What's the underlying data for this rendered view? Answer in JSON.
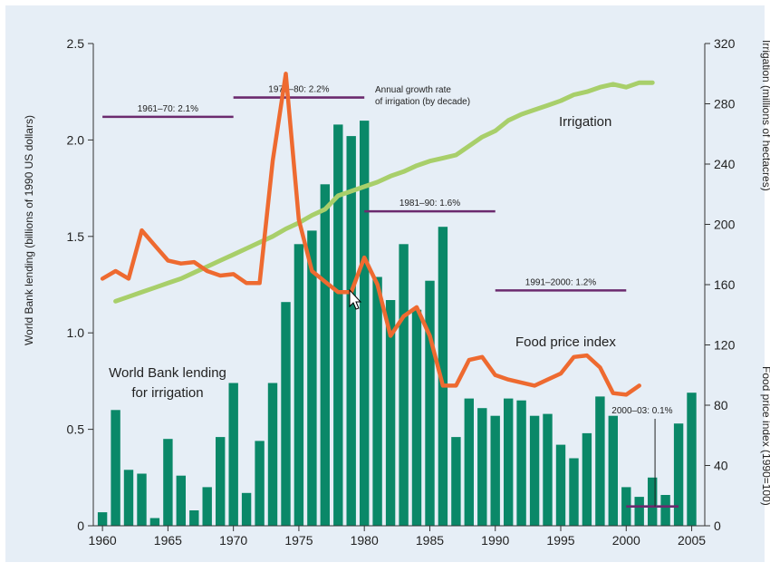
{
  "chart_data": {
    "type": "bar",
    "background": "#e6eef6",
    "colors": {
      "bars": "#0a8868",
      "irrigation": "#a8cf6a",
      "food": "#ee6a30",
      "growth": "#6b2a6e",
      "axis": "#333333"
    },
    "x": {
      "min": 1959.3,
      "max": 2006,
      "ticks": [
        1960,
        1965,
        1970,
        1975,
        1980,
        1985,
        1990,
        1995,
        2000,
        2005
      ],
      "tick_labels": [
        "1960",
        "1965",
        "1970",
        "1975",
        "1980",
        "1985",
        "1990",
        "1995",
        "2000",
        "2005"
      ]
    },
    "y_left": {
      "label": "World Bank lending (billions of 1990 US dollars)",
      "range": [
        0,
        2.5
      ],
      "ticks": [
        0,
        0.5,
        1.0,
        1.5,
        2.0,
        2.5
      ],
      "tick_labels": [
        "0",
        "0.5",
        "1.0",
        "1.5",
        "2.0",
        "2.5"
      ]
    },
    "y_right": {
      "label_top": "Irrigation (millions of hectacres)",
      "label_bottom": "Food price index (1990=100)",
      "range": [
        0,
        320
      ],
      "ticks": [
        0,
        40,
        80,
        120,
        160,
        200,
        240,
        280,
        320
      ],
      "tick_labels": [
        "0",
        "40",
        "80",
        "120",
        "160",
        "200",
        "240",
        "280",
        "320"
      ]
    },
    "lending": {
      "name": "World Bank lending for irrigation",
      "years": [
        1960,
        1961,
        1962,
        1963,
        1964,
        1965,
        1966,
        1967,
        1968,
        1969,
        1970,
        1971,
        1972,
        1973,
        1974,
        1975,
        1976,
        1977,
        1978,
        1979,
        1980,
        1981,
        1982,
        1983,
        1984,
        1985,
        1986,
        1987,
        1988,
        1989,
        1990,
        1991,
        1992,
        1993,
        1994,
        1995,
        1996,
        1997,
        1998,
        1999,
        2000,
        2001,
        2002,
        2003,
        2004,
        2005
      ],
      "values": [
        0.07,
        0.6,
        0.29,
        0.27,
        0.04,
        0.45,
        0.26,
        0.08,
        0.2,
        0.46,
        0.74,
        0.17,
        0.44,
        0.74,
        1.16,
        1.46,
        1.53,
        1.77,
        2.08,
        2.02,
        2.1,
        1.29,
        1.17,
        1.46,
        1.12,
        1.27,
        1.55,
        0.46,
        0.66,
        0.61,
        0.57,
        0.66,
        0.65,
        0.57,
        0.58,
        0.42,
        0.35,
        0.48,
        0.67,
        0.57,
        0.2,
        0.15,
        0.25,
        0.16,
        0.53,
        0.69
      ]
    },
    "irrigation": {
      "name": "Irrigation",
      "years": [
        1961,
        1962,
        1963,
        1964,
        1965,
        1966,
        1967,
        1968,
        1969,
        1970,
        1971,
        1972,
        1973,
        1974,
        1975,
        1976,
        1977,
        1978,
        1979,
        1980,
        1981,
        1982,
        1983,
        1984,
        1985,
        1986,
        1987,
        1988,
        1989,
        1990,
        1991,
        1992,
        1993,
        1994,
        1995,
        1996,
        1997,
        1998,
        1999,
        2000,
        2001,
        2002
      ],
      "values": [
        149,
        152,
        155,
        158,
        161,
        164,
        168,
        172,
        176,
        180,
        184,
        188,
        192,
        197,
        201,
        206,
        210,
        219,
        222,
        225,
        228,
        232,
        235,
        239,
        242,
        244,
        246,
        252,
        258,
        262,
        269,
        273,
        276,
        279,
        282,
        286,
        288,
        291,
        293,
        291,
        294,
        294
      ]
    },
    "food_price": {
      "name": "Food price index",
      "years": [
        1960,
        1961,
        1962,
        1963,
        1964,
        1965,
        1966,
        1967,
        1968,
        1969,
        1970,
        1971,
        1972,
        1973,
        1974,
        1975,
        1976,
        1977,
        1978,
        1979,
        1980,
        1981,
        1982,
        1983,
        1984,
        1985,
        1986,
        1987,
        1988,
        1989,
        1990,
        1991,
        1992,
        1993,
        1994,
        1995,
        1996,
        1997,
        1998,
        1999,
        2000,
        2001
      ],
      "values": [
        164,
        169,
        164,
        196,
        186,
        176,
        174,
        175,
        169,
        166,
        167,
        161,
        161,
        242,
        300,
        203,
        169,
        162,
        155,
        155,
        178,
        160,
        126,
        139,
        145,
        126,
        93,
        93,
        110,
        112,
        100,
        97,
        95,
        93,
        97,
        101,
        112,
        113,
        105,
        88,
        87,
        93
      ]
    },
    "growth_rates": {
      "title": "Annual growth rate of irrigation (by decade)",
      "title_lines": [
        "Annual growth rate",
        "of irrigation (by decade)"
      ],
      "segments": [
        {
          "label": "1961–70: 2.1%",
          "start": 1960,
          "end": 1970,
          "level": 2.12
        },
        {
          "label": "1971–80: 2.2%",
          "start": 1970,
          "end": 1980,
          "level": 2.22
        },
        {
          "label": "1981–90: 1.6%",
          "start": 1980,
          "end": 1990,
          "level": 1.63
        },
        {
          "label": "1991–2000: 1.2%",
          "start": 1990,
          "end": 2000,
          "level": 1.22
        },
        {
          "label": "2000–03: 0.1%",
          "start": 2000,
          "end": 2004,
          "level": 0.1
        }
      ]
    },
    "annotations": {
      "irrigation_label": "Irrigation",
      "food_label": "Food price index",
      "lending_label_lines": [
        "World Bank lending",
        "for irrigation"
      ]
    }
  }
}
